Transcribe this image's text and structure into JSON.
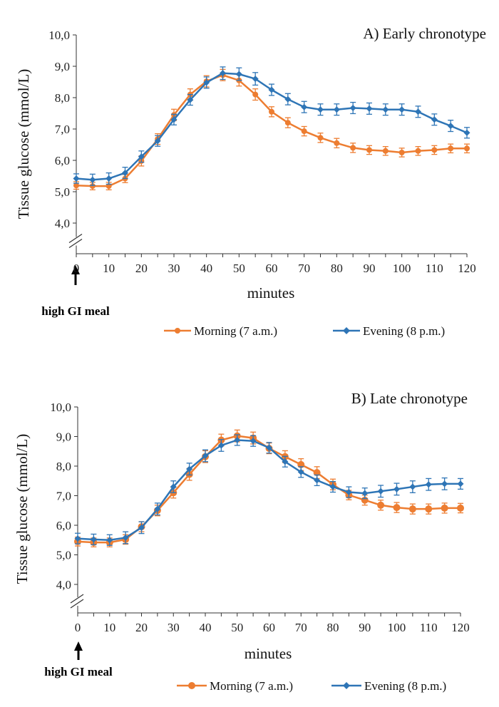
{
  "chart_data": [
    {
      "type": "line",
      "title": "A) Early chronotype",
      "xlabel": "minutes",
      "ylabel": "Tissue glucose  (mmol/L)",
      "ylim": [
        4.0,
        10.0
      ],
      "y_ticks": [
        "4,0",
        "5,0",
        "6,0",
        "7,0",
        "8,0",
        "9,0",
        "10,0"
      ],
      "x_ticks": [
        "0",
        "10",
        "20",
        "30",
        "40",
        "50",
        "60",
        "70",
        "80",
        "90",
        "100",
        "110",
        "120"
      ],
      "x": [
        0,
        5,
        10,
        15,
        20,
        25,
        30,
        35,
        40,
        45,
        50,
        55,
        60,
        65,
        70,
        75,
        80,
        85,
        90,
        95,
        100,
        105,
        110,
        115,
        120
      ],
      "annotation": "high GI meal",
      "series": [
        {
          "name": "Morning (7 a.m.)",
          "color": "#ED7D31",
          "marker": "circle",
          "values": [
            5.2,
            5.18,
            5.18,
            5.42,
            5.98,
            6.68,
            7.45,
            8.1,
            8.52,
            8.72,
            8.55,
            8.1,
            7.55,
            7.2,
            6.93,
            6.72,
            6.55,
            6.4,
            6.33,
            6.3,
            6.25,
            6.3,
            6.33,
            6.38,
            6.38
          ],
          "errors": [
            0.12,
            0.12,
            0.12,
            0.13,
            0.16,
            0.17,
            0.18,
            0.18,
            0.18,
            0.18,
            0.18,
            0.18,
            0.16,
            0.16,
            0.15,
            0.15,
            0.15,
            0.15,
            0.14,
            0.14,
            0.14,
            0.14,
            0.14,
            0.14,
            0.14
          ]
        },
        {
          "name": "Evening (8 p.m.)",
          "color": "#2E75B6",
          "marker": "diamond",
          "values": [
            5.42,
            5.38,
            5.42,
            5.6,
            6.12,
            6.62,
            7.3,
            7.93,
            8.48,
            8.78,
            8.75,
            8.6,
            8.25,
            7.95,
            7.7,
            7.62,
            7.62,
            7.67,
            7.65,
            7.62,
            7.62,
            7.55,
            7.3,
            7.1,
            6.88
          ],
          "errors": [
            0.15,
            0.18,
            0.18,
            0.18,
            0.18,
            0.17,
            0.17,
            0.17,
            0.18,
            0.2,
            0.2,
            0.2,
            0.18,
            0.18,
            0.18,
            0.18,
            0.18,
            0.18,
            0.18,
            0.18,
            0.18,
            0.18,
            0.18,
            0.18,
            0.17
          ]
        }
      ]
    },
    {
      "type": "line",
      "title": "B) Late chronotype",
      "xlabel": "minutes",
      "ylabel": "Tissue glucose  (mmol/L)",
      "ylim": [
        4.0,
        10.0
      ],
      "y_ticks": [
        "4,0",
        "5,0",
        "6,0",
        "7,0",
        "8,0",
        "9,0",
        "10,0"
      ],
      "x_ticks": [
        "0",
        "10",
        "20",
        "30",
        "40",
        "50",
        "60",
        "70",
        "80",
        "90",
        "100",
        "110",
        "120"
      ],
      "x": [
        0,
        5,
        10,
        15,
        20,
        25,
        30,
        35,
        40,
        45,
        50,
        55,
        60,
        65,
        70,
        75,
        80,
        85,
        90,
        95,
        100,
        105,
        110,
        115,
        120
      ],
      "annotation": "high GI meal",
      "series": [
        {
          "name": "Morning (7 a.m.)",
          "color": "#ED7D31",
          "marker": "circle",
          "values": [
            5.45,
            5.42,
            5.42,
            5.52,
            5.95,
            6.5,
            7.1,
            7.72,
            8.32,
            8.88,
            9.02,
            8.95,
            8.6,
            8.32,
            8.05,
            7.78,
            7.38,
            7.02,
            6.85,
            6.68,
            6.6,
            6.55,
            6.55,
            6.58,
            6.58
          ],
          "errors": [
            0.15,
            0.15,
            0.15,
            0.16,
            0.17,
            0.18,
            0.18,
            0.2,
            0.2,
            0.2,
            0.2,
            0.2,
            0.18,
            0.2,
            0.2,
            0.2,
            0.18,
            0.16,
            0.17,
            0.17,
            0.17,
            0.17,
            0.17,
            0.17,
            0.16
          ]
        },
        {
          "name": "Evening (8 p.m.)",
          "color": "#2E75B6",
          "marker": "diamond",
          "values": [
            5.55,
            5.52,
            5.5,
            5.58,
            5.92,
            6.55,
            7.3,
            7.9,
            8.35,
            8.7,
            8.88,
            8.85,
            8.62,
            8.15,
            7.8,
            7.52,
            7.3,
            7.12,
            7.08,
            7.15,
            7.22,
            7.3,
            7.38,
            7.4,
            7.4
          ],
          "errors": [
            0.18,
            0.18,
            0.18,
            0.2,
            0.2,
            0.2,
            0.2,
            0.2,
            0.2,
            0.2,
            0.18,
            0.18,
            0.18,
            0.18,
            0.18,
            0.18,
            0.18,
            0.18,
            0.18,
            0.2,
            0.2,
            0.2,
            0.2,
            0.2,
            0.18
          ]
        }
      ]
    }
  ]
}
